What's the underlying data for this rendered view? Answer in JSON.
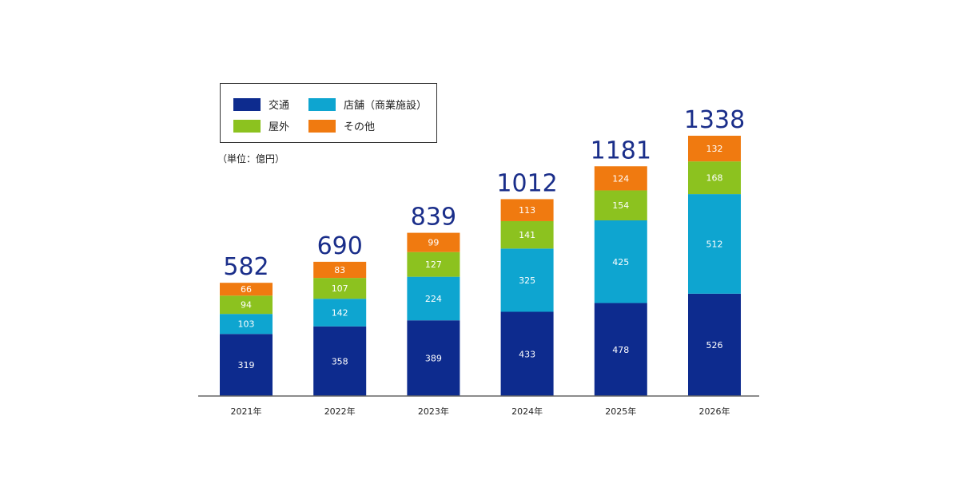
{
  "chart_data": {
    "type": "bar",
    "stacked": true,
    "unit": "（単位：億円）",
    "categories": [
      "2021年",
      "2022年",
      "2023年",
      "2024年",
      "2025年",
      "2026年"
    ],
    "series": [
      {
        "name": "交通",
        "color": "#0d2b8e",
        "values": [
          319,
          358,
          389,
          433,
          478,
          526
        ]
      },
      {
        "name": "店舗（商業施設）",
        "color": "#0ea5d0",
        "values": [
          103,
          142,
          224,
          325,
          425,
          512
        ]
      },
      {
        "name": "屋外",
        "color": "#8cc21f",
        "values": [
          94,
          107,
          127,
          141,
          154,
          168
        ]
      },
      {
        "name": "その他",
        "color": "#f07a10",
        "values": [
          66,
          83,
          99,
          113,
          124,
          132
        ]
      }
    ],
    "totals": [
      "582",
      "690",
      "839",
      "1012",
      "1181",
      "1338"
    ],
    "total_color": "#1a2e8a",
    "ylim": [
      0,
      1338
    ],
    "legend_position": "top-left"
  }
}
